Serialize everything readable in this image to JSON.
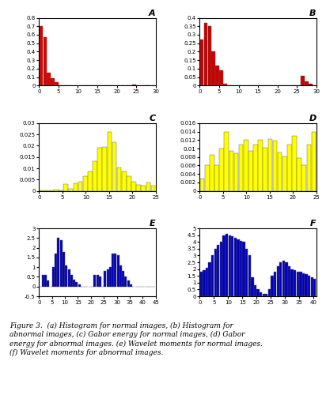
{
  "chart_data": [
    {
      "type": "histogram",
      "title": "A",
      "bins": [
        0,
        1,
        2,
        3,
        4,
        5,
        6,
        7,
        8,
        9,
        10,
        11,
        12,
        13,
        14,
        15,
        16,
        17,
        18,
        19,
        20,
        21,
        22,
        23,
        24,
        25,
        26,
        27,
        28,
        29,
        30
      ],
      "values": [
        0.7,
        0.57,
        0.15,
        0.09,
        0.04,
        0.0,
        0.0,
        0.0,
        0.0,
        0.0,
        0.0,
        0.0,
        0.0,
        0.0,
        0.0,
        0.0,
        0.0,
        0.0,
        0.0,
        0.0,
        0.0,
        0.0,
        0.0,
        0.0,
        0.01,
        0.0,
        0.0,
        0.0,
        0.0,
        0.0
      ],
      "color": "#DD0000",
      "xlim": [
        0,
        30
      ],
      "xticks": [
        0,
        5,
        10,
        15,
        20,
        25,
        30
      ],
      "ylim": [
        0,
        0.8
      ],
      "yticks": [
        0,
        0.1,
        0.2,
        0.3,
        0.4,
        0.5,
        0.6,
        0.7,
        0.8
      ]
    },
    {
      "type": "histogram",
      "title": "B",
      "bins": [
        0,
        1,
        2,
        3,
        4,
        5,
        6,
        7,
        8,
        9,
        10,
        11,
        12,
        13,
        14,
        15,
        16,
        17,
        18,
        19,
        20,
        21,
        22,
        23,
        24,
        25,
        26,
        27,
        28,
        29,
        30
      ],
      "values": [
        0.27,
        0.37,
        0.35,
        0.2,
        0.12,
        0.09,
        0.01,
        0.0,
        0.0,
        0.0,
        0.0,
        0.0,
        0.0,
        0.0,
        0.0,
        0.0,
        0.0,
        0.0,
        0.0,
        0.0,
        0.0,
        0.0,
        0.0,
        0.0,
        0.0,
        0.0,
        0.06,
        0.025,
        0.01,
        0.0
      ],
      "color": "#CC0000",
      "xlim": [
        0,
        30
      ],
      "xticks": [
        0,
        5,
        10,
        15,
        20,
        25,
        30
      ],
      "ylim": [
        0,
        0.4
      ],
      "yticks": [
        0,
        0.05,
        0.1,
        0.15,
        0.2,
        0.25,
        0.3,
        0.35,
        0.4
      ]
    },
    {
      "type": "histogram",
      "title": "C",
      "bins": [
        0,
        1.0417,
        2.0833,
        3.125,
        4.1667,
        5.2083,
        6.25,
        7.2917,
        8.3333,
        9.375,
        10.4167,
        11.4583,
        12.5,
        13.5417,
        14.5833,
        15.625,
        16.6667,
        17.7083,
        18.75,
        19.7917,
        20.8333,
        21.875,
        22.9167,
        23.9583,
        25
      ],
      "values": [
        0.0002,
        0.0004,
        0.0002,
        0.0005,
        0.0004,
        0.0029,
        0.0008,
        0.0035,
        0.0042,
        0.0065,
        0.0085,
        0.013,
        0.019,
        0.0195,
        0.026,
        0.0215,
        0.0105,
        0.0085,
        0.0065,
        0.004,
        0.0028,
        0.0022,
        0.0038,
        0.0025
      ],
      "color": "#FFFF00",
      "xlim": [
        0,
        25
      ],
      "xticks": [
        0,
        5,
        10,
        15,
        20,
        25
      ],
      "ylim": [
        0,
        0.03
      ],
      "yticks": [
        0,
        0.005,
        0.01,
        0.015,
        0.02,
        0.025,
        0.03
      ]
    },
    {
      "type": "histogram",
      "title": "D",
      "bins": [
        0,
        1.0417,
        2.0833,
        3.125,
        4.1667,
        5.2083,
        6.25,
        7.2917,
        8.3333,
        9.375,
        10.4167,
        11.4583,
        12.5,
        13.5417,
        14.5833,
        15.625,
        16.6667,
        17.7083,
        18.75,
        19.7917,
        20.8333,
        21.875,
        22.9167,
        23.9583,
        25
      ],
      "values": [
        0.003,
        0.006,
        0.0086,
        0.006,
        0.01,
        0.014,
        0.0095,
        0.0088,
        0.011,
        0.012,
        0.0095,
        0.011,
        0.012,
        0.0102,
        0.0122,
        0.0118,
        0.009,
        0.0082,
        0.011,
        0.013,
        0.0078,
        0.006,
        0.011,
        0.014
      ],
      "color": "#FFFF00",
      "xlim": [
        0,
        25
      ],
      "xticks": [
        0,
        5,
        10,
        15,
        20,
        25
      ],
      "ylim": [
        0,
        0.016
      ],
      "yticks": [
        0,
        0.002,
        0.004,
        0.006,
        0.008,
        0.01,
        0.012,
        0.014,
        0.016
      ]
    },
    {
      "type": "histogram",
      "title": "E",
      "bins": [
        0,
        1,
        2,
        3,
        4,
        5,
        6,
        7,
        8,
        9,
        10,
        11,
        12,
        13,
        14,
        15,
        16,
        17,
        18,
        19,
        20,
        21,
        22,
        23,
        24,
        25,
        26,
        27,
        28,
        29,
        30,
        31,
        32,
        33,
        34,
        35,
        36,
        37,
        38,
        39,
        40,
        41,
        42,
        43,
        44,
        45
      ],
      "values": [
        0.0,
        0.6,
        0.6,
        0.3,
        0.0,
        1.0,
        1.7,
        2.5,
        2.4,
        1.8,
        1.1,
        0.9,
        0.6,
        0.35,
        0.25,
        0.1,
        0.0,
        0.0,
        0.0,
        0.0,
        0.0,
        0.6,
        0.6,
        0.5,
        0.0,
        0.8,
        0.9,
        1.0,
        1.7,
        1.7,
        1.6,
        1.1,
        0.8,
        0.5,
        0.3,
        0.1,
        0.0,
        0.0,
        0.0,
        0.0,
        0.0,
        0.0,
        0.0,
        0.0,
        0.0
      ],
      "color": "#0000BB",
      "xlim": [
        0,
        45
      ],
      "xticks": [
        0,
        5,
        10,
        15,
        20,
        25,
        30,
        35,
        40,
        45
      ],
      "ylim": [
        -0.5,
        3
      ],
      "yticks": [
        -0.5,
        0,
        0.5,
        1,
        1.5,
        2,
        2.5,
        3
      ]
    },
    {
      "type": "histogram",
      "title": "F",
      "bins": [
        0,
        1,
        2,
        3,
        4,
        5,
        6,
        7,
        8,
        9,
        10,
        11,
        12,
        13,
        14,
        15,
        16,
        17,
        18,
        19,
        20,
        21,
        22,
        23,
        24,
        25,
        26,
        27,
        28,
        29,
        30,
        31,
        32,
        33,
        34,
        35,
        36,
        37,
        38,
        39,
        40,
        41
      ],
      "values": [
        1.8,
        1.9,
        2.1,
        2.5,
        3.0,
        3.5,
        3.8,
        4.0,
        4.5,
        4.6,
        4.5,
        4.4,
        4.3,
        4.2,
        4.1,
        4.0,
        3.5,
        3.0,
        1.4,
        0.8,
        0.5,
        0.3,
        0.2,
        0.2,
        0.5,
        1.5,
        1.8,
        2.2,
        2.5,
        2.6,
        2.5,
        2.2,
        2.0,
        1.9,
        1.8,
        1.8,
        1.7,
        1.6,
        1.5,
        1.4,
        1.3
      ],
      "color": "#0000BB",
      "xlim": [
        0,
        41
      ],
      "xticks": [
        0,
        5,
        10,
        15,
        20,
        25,
        30,
        35,
        40
      ],
      "ylim": [
        0,
        5
      ],
      "yticks": [
        0,
        0.5,
        1,
        1.5,
        2,
        2.5,
        3,
        3.5,
        4,
        4.5,
        5
      ]
    }
  ],
  "caption": "Figure 3.  (a) Histogram for normal images, (b) Histogram for\nabnormal images, (c) Gabor energy for normal images, (d) Gabor\nenergy for abnormal images. (e) Wavelet moments for normal images.\n(f) Wavelet moments for abnormal images."
}
